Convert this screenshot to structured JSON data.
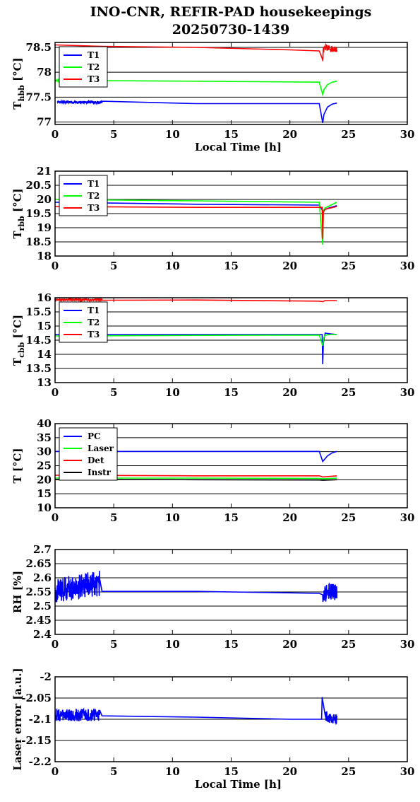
{
  "title_line1": "INO-CNR, REFIR-PAD housekeepings",
  "title_line2": "20250730-1439",
  "chart_data": [
    {
      "type": "line",
      "ylabel": "T",
      "ylabel_sub": "hbb",
      "ylabel_unit": "[°C]",
      "xlabel": "Local Time [h]",
      "xlim": [
        0,
        30
      ],
      "ylim": [
        76.95,
        78.6
      ],
      "xticks": [
        0,
        5,
        10,
        15,
        20,
        25,
        30
      ],
      "yticks": [
        77,
        77.5,
        78,
        78.5
      ],
      "yticklabels": [
        "77",
        "77.5",
        "78",
        "78.5"
      ],
      "grid": "horizontal",
      "legend_position": "top-left",
      "series": [
        {
          "name": "T1",
          "color": "#0000ff",
          "x": [
            0.2,
            4.0,
            4.0,
            12,
            22.5,
            22.8,
            22.9,
            23.2,
            23.6,
            24.0
          ],
          "y": [
            77.4,
            77.4,
            77.38,
            77.37,
            77.37,
            76.98,
            77.15,
            77.3,
            77.36,
            77.38
          ],
          "noise": [
            0.2,
            4.0,
            0.025
          ]
        },
        {
          "name": "T2",
          "color": "#00ff00",
          "x": [
            0.0,
            4.0,
            12,
            22.5,
            22.8,
            22.9,
            23.2,
            23.6,
            24.0
          ],
          "y": [
            77.83,
            77.83,
            77.82,
            77.8,
            77.55,
            77.65,
            77.75,
            77.8,
            77.82
          ],
          "noise": [
            0.0,
            0.4,
            0.02
          ]
        },
        {
          "name": "T3",
          "color": "#ff0000",
          "x": [
            0.0,
            4.0,
            12,
            20,
            22.5,
            22.8,
            22.85,
            23.0,
            24.0
          ],
          "y": [
            78.55,
            78.52,
            78.5,
            78.45,
            78.43,
            78.25,
            78.45,
            78.5,
            78.45
          ],
          "noise": [
            22.8,
            24.0,
            0.06
          ]
        }
      ]
    },
    {
      "type": "line",
      "ylabel": "T",
      "ylabel_sub": "rbb",
      "ylabel_unit": "[°C]",
      "xlabel": "",
      "xlim": [
        0,
        30
      ],
      "ylim": [
        18,
        21
      ],
      "xticks": [
        0,
        5,
        10,
        15,
        20,
        25,
        30
      ],
      "yticks": [
        18,
        18.5,
        19,
        19.5,
        20,
        20.5,
        21
      ],
      "yticklabels": [
        "18",
        "18.5",
        "19",
        "19.5",
        "20",
        "20.5",
        "21"
      ],
      "grid": "horizontal",
      "legend_position": "top-left",
      "series": [
        {
          "name": "T1",
          "color": "#0000ff",
          "x": [
            0,
            12,
            22.5,
            22.8,
            23.0,
            23.5,
            24.0
          ],
          "y": [
            19.9,
            19.83,
            19.8,
            19.6,
            19.65,
            19.72,
            19.78
          ]
        },
        {
          "name": "T2",
          "color": "#00ff00",
          "x": [
            0,
            12,
            22.5,
            22.8,
            22.85,
            23.0,
            23.5,
            24.0
          ],
          "y": [
            20.0,
            19.95,
            19.9,
            18.4,
            19.6,
            19.7,
            19.8,
            19.9
          ]
        },
        {
          "name": "T3",
          "color": "#ff0000",
          "x": [
            0,
            12,
            22.5,
            22.75,
            22.8,
            22.85,
            23.0,
            23.5,
            24.0
          ],
          "y": [
            19.75,
            19.72,
            19.72,
            19.72,
            18.6,
            19.55,
            19.65,
            19.7,
            19.75
          ]
        }
      ]
    },
    {
      "type": "line",
      "ylabel": "T",
      "ylabel_sub": "cbb",
      "ylabel_unit": "[°C]",
      "xlabel": "",
      "xlim": [
        0,
        30
      ],
      "ylim": [
        13,
        16
      ],
      "xticks": [
        0,
        5,
        10,
        15,
        20,
        25,
        30
      ],
      "yticks": [
        13,
        13.5,
        14,
        14.5,
        15,
        15.5,
        16
      ],
      "yticklabels": [
        "13",
        "13.5",
        "14",
        "14.5",
        "15",
        "15.5",
        "16"
      ],
      "grid": "horizontal",
      "legend_position": "top-left",
      "series": [
        {
          "name": "T1",
          "color": "#0000ff",
          "x": [
            0,
            12,
            22.5,
            22.75,
            22.8,
            22.85,
            23.0,
            23.5,
            24.0
          ],
          "y": [
            14.7,
            14.7,
            14.7,
            14.7,
            13.65,
            14.4,
            14.75,
            14.72,
            14.7
          ]
        },
        {
          "name": "T2",
          "color": "#00ff00",
          "x": [
            0,
            12,
            22.5,
            22.8,
            22.9,
            23.0,
            23.5,
            24.0
          ],
          "y": [
            14.65,
            14.67,
            14.68,
            14.3,
            14.6,
            14.68,
            14.7,
            14.7
          ]
        },
        {
          "name": "T3",
          "color": "#ff0000",
          "x": [
            0,
            4.0,
            12,
            22.5,
            22.8,
            23.0,
            24.0
          ],
          "y": [
            15.93,
            15.93,
            15.92,
            15.88,
            15.86,
            15.9,
            15.9
          ],
          "noise": [
            0.0,
            4.0,
            0.03
          ]
        }
      ]
    },
    {
      "type": "line",
      "ylabel": "T [°C]",
      "ylabel_sub": "",
      "ylabel_unit": "",
      "xlabel": "",
      "xlim": [
        0,
        30
      ],
      "ylim": [
        10,
        40
      ],
      "xticks": [
        0,
        5,
        10,
        15,
        20,
        25,
        30
      ],
      "yticks": [
        10,
        15,
        20,
        25,
        30,
        35,
        40
      ],
      "yticklabels": [
        "10",
        "15",
        "20",
        "25",
        "30",
        "35",
        "40"
      ],
      "grid": "horizontal",
      "legend_position": "top-left",
      "series": [
        {
          "name": "PC",
          "color": "#0000ff",
          "x": [
            0,
            12,
            22.5,
            22.8,
            23.2,
            23.6,
            24.0
          ],
          "y": [
            30.1,
            30.1,
            30.1,
            26.5,
            28.5,
            29.6,
            30.1
          ]
        },
        {
          "name": "Laser",
          "color": "#00ff00",
          "x": [
            0,
            12,
            22.5,
            22.8,
            24.0
          ],
          "y": [
            20.6,
            20.6,
            20.5,
            20.3,
            20.6
          ]
        },
        {
          "name": "Det",
          "color": "#ff0000",
          "x": [
            0,
            12,
            22.5,
            22.8,
            24.0
          ],
          "y": [
            21.6,
            21.4,
            21.4,
            21.0,
            21.4
          ]
        },
        {
          "name": "Instr",
          "color": "#000000",
          "x": [
            0,
            12,
            22.5,
            22.8,
            24.0
          ],
          "y": [
            20.1,
            20.0,
            19.9,
            19.8,
            20.0
          ]
        }
      ]
    },
    {
      "type": "line",
      "ylabel": "RH [%]",
      "ylabel_sub": "",
      "ylabel_unit": "",
      "xlabel": "",
      "xlim": [
        0,
        30
      ],
      "ylim": [
        2.4,
        2.7
      ],
      "xticks": [
        0,
        5,
        10,
        15,
        20,
        25,
        30
      ],
      "yticks": [
        2.4,
        2.45,
        2.5,
        2.55,
        2.6,
        2.65,
        2.7
      ],
      "yticklabels": [
        "2.4",
        "2.45",
        "2.5",
        "2.55",
        "2.6",
        "2.65",
        "2.7"
      ],
      "grid": "horizontal",
      "legend_position": "none",
      "series": [
        {
          "name": "",
          "color": "#0000ff",
          "x": [
            0.0,
            2.0,
            3.8,
            4.0,
            12,
            22.5,
            22.8,
            23.5,
            24.0
          ],
          "y": [
            2.55,
            2.57,
            2.58,
            2.552,
            2.552,
            2.545,
            2.54,
            2.55,
            2.55
          ],
          "noise": [
            0.0,
            3.8,
            0.045,
            22.8,
            24.0,
            0.03
          ]
        }
      ]
    },
    {
      "type": "line",
      "ylabel": "Laser error [a.u.]",
      "ylabel_sub": "",
      "ylabel_unit": "",
      "xlabel": "Local Time [h]",
      "xlim": [
        0,
        30
      ],
      "ylim": [
        -2.2,
        -2
      ],
      "xticks": [
        0,
        5,
        10,
        15,
        20,
        25,
        30
      ],
      "yticks": [
        -2.2,
        -2.15,
        -2.1,
        -2.05,
        -2
      ],
      "yticklabels": [
        "-2.2",
        "-2.15",
        "-2.1",
        "-2.05",
        "-2"
      ],
      "grid": "horizontal",
      "legend_position": "none",
      "series": [
        {
          "name": "",
          "color": "#0000ff",
          "x": [
            0.0,
            3.8,
            4.0,
            12,
            20,
            22.7,
            22.75,
            23.0,
            23.5,
            24.0
          ],
          "y": [
            -2.09,
            -2.09,
            -2.092,
            -2.095,
            -2.1,
            -2.1,
            -2.048,
            -2.09,
            -2.1,
            -2.1
          ],
          "noise": [
            0.0,
            3.8,
            0.015,
            23.0,
            24.0,
            0.012
          ]
        }
      ]
    }
  ]
}
